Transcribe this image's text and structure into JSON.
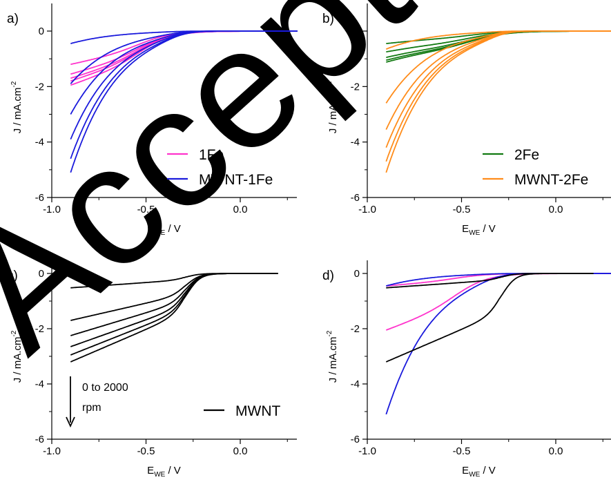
{
  "watermark": {
    "text": "Accepted",
    "color": "#f3d9dc"
  },
  "chart_data": [
    {
      "panel": "a)",
      "type": "line",
      "xlabel": "E",
      "xlabel_sub": "WE",
      "xlabel_unit": " / V",
      "ylabel": "J / mA.cm",
      "ylabel_sup": "-2",
      "xlim": [
        -1.0,
        0.3
      ],
      "ylim": [
        -6,
        0.4
      ],
      "xticks": [
        "-1.0",
        "-0.5",
        "0.0"
      ],
      "xtick_values": [
        -1.0,
        -0.5,
        0.0
      ],
      "yticks": [
        "-6",
        "-4",
        "-2",
        "0"
      ],
      "ytick_values": [
        -6,
        -4,
        -2,
        0
      ],
      "legend_position": "lower-right",
      "legend": [
        {
          "label": "1Fe",
          "color": "#ff33cc"
        },
        {
          "label": "MWNT-1Fe",
          "color": "#1a1adc"
        }
      ],
      "series": [
        {
          "color": "#ff33cc",
          "kind": "catalyst",
          "params": {
            "plateau": 0.45,
            "E0": -0.52,
            "w": 0.09,
            "E1": -0.92,
            "w1": 0.18,
            "start": -0.9
          },
          "y_at_start": [
            -1.2,
            -1.55,
            -1.7,
            -1.8,
            -1.95
          ]
        },
        {
          "color": "#1a1adc",
          "kind": "catalyst",
          "params": {
            "E0": -0.33,
            "w": 0.06,
            "E1": -1.2,
            "w1": 0.2,
            "start": -0.9
          },
          "y_at_start": [
            -0.45,
            -1.9,
            -3.0,
            -3.9,
            -4.6,
            -5.1
          ]
        }
      ]
    },
    {
      "panel": "b)",
      "type": "line",
      "xlabel": "E",
      "xlabel_sub": "WE",
      "xlabel_unit": " / V",
      "ylabel": "J / mA.cm",
      "ylabel_sup": "-2",
      "xlim": [
        -1.0,
        0.3
      ],
      "ylim": [
        -6,
        0.4
      ],
      "xticks": [
        "-1.0",
        "-0.5",
        "0.0"
      ],
      "xtick_values": [
        -1.0,
        -0.5,
        0.0
      ],
      "yticks": [
        "-6",
        "-4",
        "-2",
        "0"
      ],
      "ytick_values": [
        -6,
        -4,
        -2,
        0
      ],
      "legend_position": "lower-right",
      "legend": [
        {
          "label": "2Fe",
          "color": "#127a12"
        },
        {
          "label": "MWNT-2Fe",
          "color": "#ff8c1a"
        }
      ],
      "series": [
        {
          "color": "#127a12",
          "kind": "catalyst",
          "params": {
            "plateau": 0.4,
            "E0": -0.45,
            "w": 0.1,
            "E1": -0.95,
            "w1": 0.15,
            "start": -0.9
          },
          "y_at_start": [
            -0.45,
            -0.75,
            -0.95,
            -1.05,
            -1.12
          ]
        },
        {
          "color": "#ff8c1a",
          "kind": "catalyst",
          "params": {
            "E0": -0.3,
            "w": 0.05,
            "E1": -1.2,
            "w1": 0.2,
            "start": -0.9
          },
          "y_at_start": [
            -0.65,
            -2.6,
            -3.55,
            -4.2,
            -4.7,
            -5.1
          ]
        }
      ]
    },
    {
      "panel": "c)",
      "type": "line",
      "xlabel": "E",
      "xlabel_sub": "WE",
      "xlabel_unit": " / V",
      "ylabel": "J / mA.cm",
      "ylabel_sup": "-2",
      "xlim": [
        -1.0,
        0.3
      ],
      "ylim": [
        -6,
        0.4
      ],
      "xticks": [
        "-1.0",
        "-0.5",
        "0.0"
      ],
      "xtick_values": [
        -1.0,
        -0.5,
        0.0
      ],
      "yticks": [
        "-6",
        "-4",
        "-2",
        "0"
      ],
      "ytick_values": [
        -6,
        -4,
        -2,
        0
      ],
      "legend_position": "lower-right",
      "legend": [
        {
          "label": "MWNT",
          "color": "#000000"
        }
      ],
      "annotation": {
        "line1": "0 to 2000",
        "line2": "rpm"
      },
      "series": [
        {
          "color": "#000000",
          "kind": "mwnt",
          "params": {
            "start": -0.9,
            "end": 0.2
          },
          "y_at_start": [
            -0.52,
            -1.7,
            -2.25,
            -2.65,
            -2.95,
            -3.2
          ]
        }
      ]
    },
    {
      "panel": "d)",
      "type": "line",
      "xlabel": "E",
      "xlabel_sub": "WE",
      "xlabel_unit": " / V",
      "ylabel": "J / mA.cm",
      "ylabel_sup": "-2",
      "xlim": [
        -1.0,
        0.3
      ],
      "ylim": [
        -6,
        0.4
      ],
      "xticks": [
        "-1.0",
        "-0.5",
        "0.0"
      ],
      "xtick_values": [
        -1.0,
        -0.5,
        0.0
      ],
      "yticks": [
        "-6",
        "-4",
        "-2",
        "0"
      ],
      "ytick_values": [
        -6,
        -4,
        -2,
        0
      ],
      "legend": [],
      "series": [
        {
          "color": "#ff33cc",
          "kind": "catalyst",
          "params": {
            "plateau": 0.45,
            "E0": -0.52,
            "w": 0.09,
            "E1": -0.92,
            "w1": 0.18,
            "start": -0.9
          },
          "y_at_start": [
            -0.45,
            -2.05
          ]
        },
        {
          "color": "#1a1adc",
          "kind": "catalyst",
          "params": {
            "E0": -0.33,
            "w": 0.06,
            "E1": -1.2,
            "w1": 0.2,
            "start": -0.9
          },
          "y_at_start": [
            -0.45,
            -5.1
          ]
        },
        {
          "color": "#000000",
          "kind": "mwnt",
          "params": {
            "start": -0.9,
            "end": 0.2
          },
          "y_at_start": [
            -0.52,
            -3.2
          ]
        }
      ]
    }
  ]
}
